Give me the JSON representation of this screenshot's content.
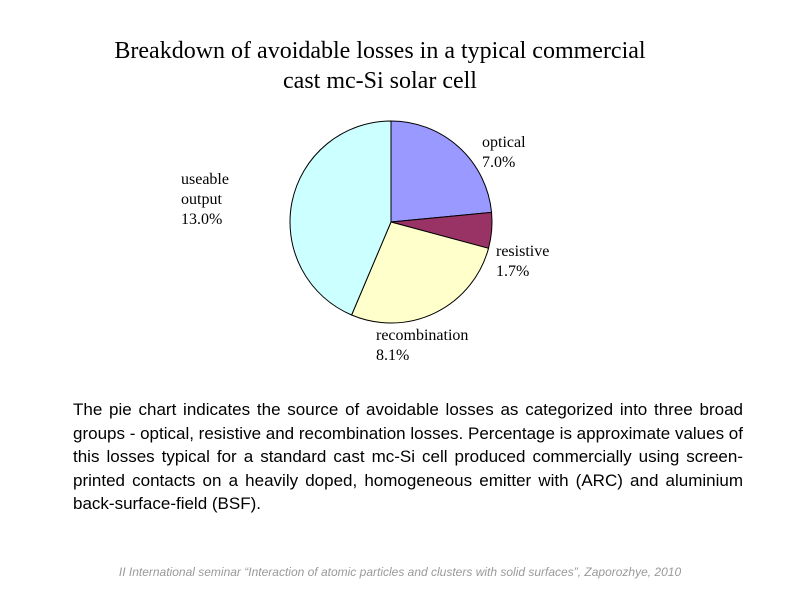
{
  "chart_data": {
    "type": "pie",
    "title": "Breakdown of avoidable losses in a typical commercial cast mc-Si solar cell",
    "title_lines": [
      "Breakdown of avoidable losses in a typical commercial",
      "cast mc-Si solar cell"
    ],
    "slices": [
      {
        "name": "optical",
        "label_lines": [
          "optical"
        ],
        "value": 7.0,
        "value_label": "7.0%",
        "color": "#9999ff"
      },
      {
        "name": "resistive",
        "label_lines": [
          "resistive"
        ],
        "value": 1.7,
        "value_label": "1.7%",
        "color": "#993366"
      },
      {
        "name": "recombination",
        "label_lines": [
          "recombination"
        ],
        "value": 8.1,
        "value_label": "8.1%",
        "color": "#ffffcc"
      },
      {
        "name": "useable output",
        "label_lines": [
          "useable",
          "output"
        ],
        "value": 13.0,
        "value_label": "13.0%",
        "color": "#ccffff"
      }
    ]
  },
  "description": "The pie chart indicates the source of avoidable losses as categorized into three broad groups - optical, resistive and recombination losses. Percentage is approximate values of this losses typical for a standard cast mc-Si cell produced commercially using screen-printed contacts on a heavily doped, homogeneous emitter with (ARC) and aluminium back-surface-field (BSF).",
  "footer": "II International seminar “Interaction of atomic particles and clusters with solid surfaces”, Zaporozhye, 2010"
}
